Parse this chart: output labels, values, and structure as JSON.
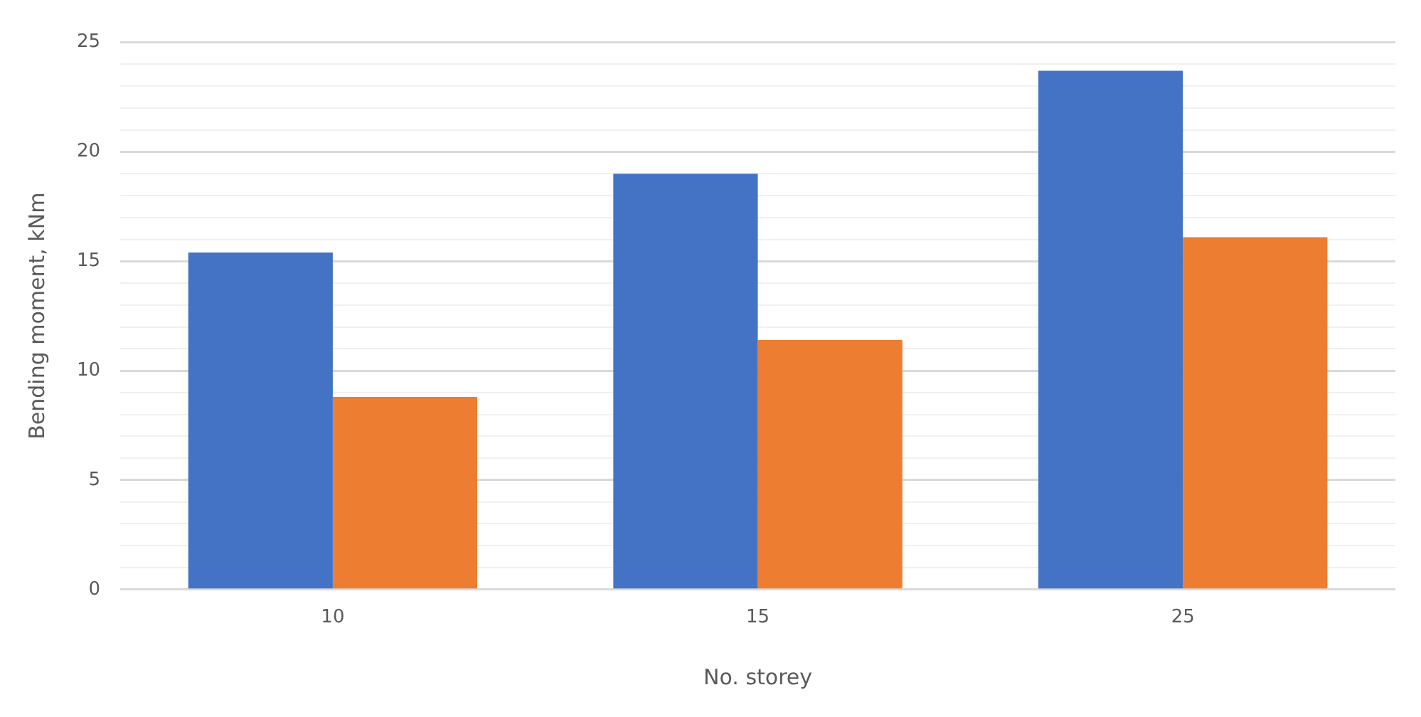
{
  "chart_data": {
    "type": "bar",
    "xlabel": "No. storey",
    "ylabel": "Bending moment, kNm",
    "categories": [
      "10",
      "15",
      "25"
    ],
    "series": [
      {
        "color": "#4472c4",
        "values": [
          15.4,
          19.0,
          23.7
        ]
      },
      {
        "color": "#ed7d31",
        "values": [
          8.8,
          11.4,
          16.1
        ]
      }
    ],
    "ylim": [
      0,
      25
    ],
    "yticks": [
      0,
      {
        "value": 1,
        "label": null
      },
      {
        "value": 2,
        "label": null
      },
      {
        "value": 3,
        "label": null
      },
      {
        "value": 4,
        "label": null
      },
      5,
      {
        "value": 6,
        "label": null
      },
      {
        "value": 7,
        "label": null
      },
      {
        "value": 8,
        "label": null
      },
      {
        "value": 9,
        "label": null
      },
      10,
      {
        "value": 11,
        "label": null
      },
      {
        "value": 12,
        "label": null
      },
      {
        "value": 13,
        "label": null
      },
      {
        "value": 14,
        "label": null
      },
      15,
      {
        "value": 16,
        "label": null
      },
      {
        "value": 17,
        "label": null
      },
      {
        "value": 18,
        "label": null
      },
      {
        "value": 19,
        "label": null
      },
      20,
      {
        "value": 21,
        "label": null
      },
      {
        "value": 22,
        "label": null
      },
      {
        "value": 23,
        "label": null
      },
      {
        "value": 24,
        "label": null
      },
      25
    ],
    "grid": "y",
    "legend": false
  }
}
